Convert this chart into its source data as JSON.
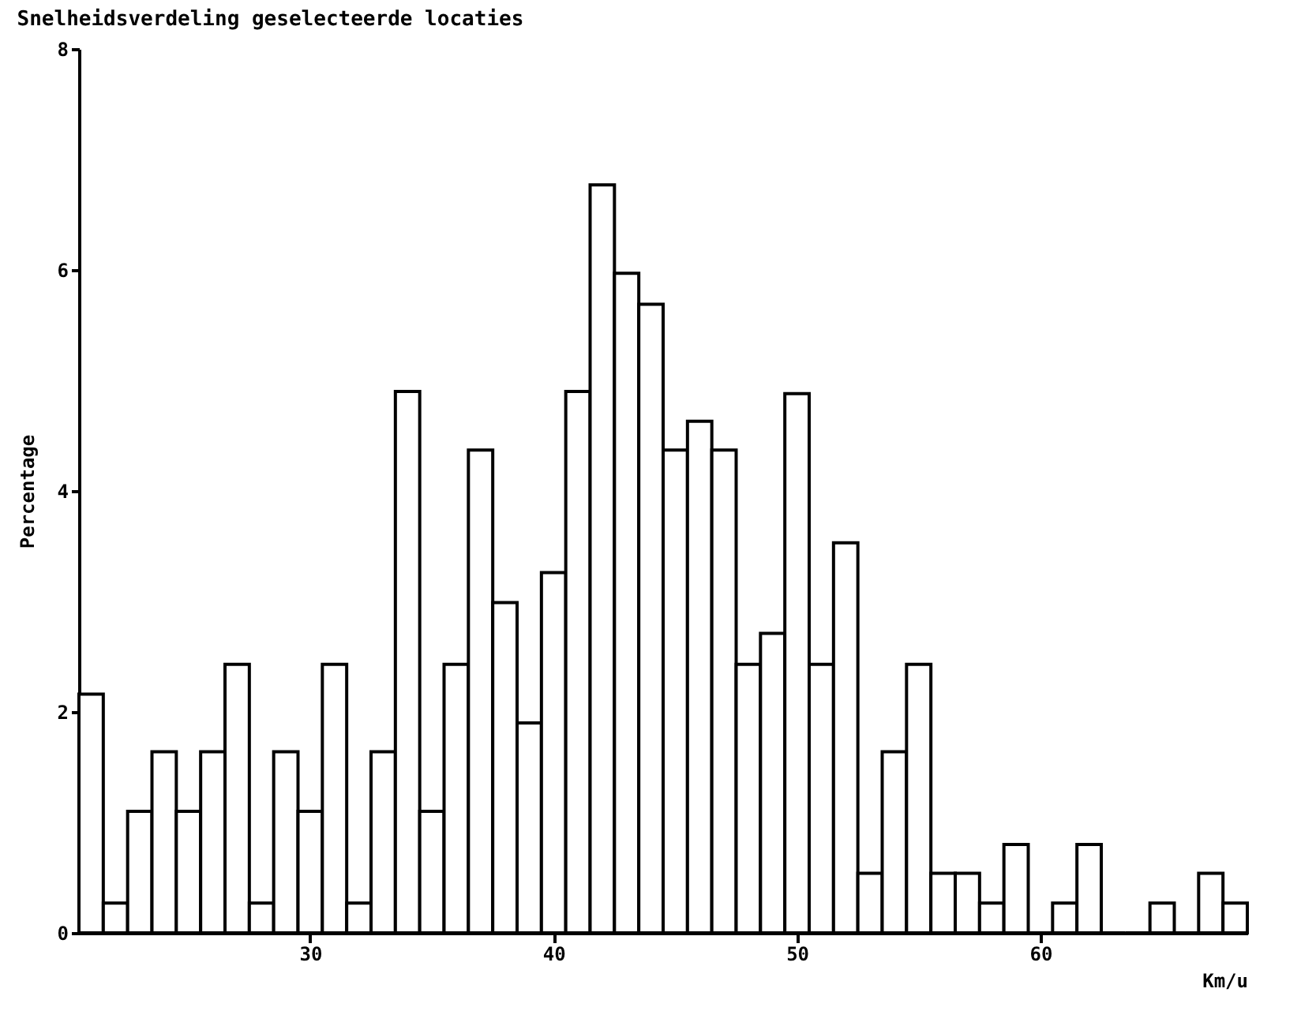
{
  "chart_data": {
    "type": "histogram",
    "title": "Snelheidsverdeling geselecteerde locaties",
    "xlabel": "Km/u",
    "ylabel": "Percentage",
    "bins": [
      20.5,
      21.5,
      22.5,
      23.5,
      24.5,
      25.5,
      26.5,
      27.5,
      28.5,
      29.5,
      30.5,
      31.5,
      32.5,
      33.5,
      34.5,
      35.5,
      36.5,
      37.5,
      38.5,
      39.5,
      40.5,
      41.5,
      42.5,
      43.5,
      44.5,
      45.5,
      46.5,
      47.5,
      48.5,
      49.5,
      50.5,
      51.5,
      52.5,
      53.5,
      54.5,
      55.5,
      56.5,
      57.5,
      58.5,
      59.5,
      60.5,
      61.5,
      62.5,
      63.5,
      64.5,
      65.5,
      66.5,
      67.5,
      68.5
    ],
    "values": [
      2.16,
      0.27,
      1.1,
      1.64,
      1.1,
      1.64,
      2.43,
      0.27,
      1.64,
      1.1,
      2.43,
      0.27,
      1.64,
      4.9,
      1.1,
      2.43,
      4.37,
      2.99,
      1.9,
      3.26,
      4.9,
      6.77,
      5.97,
      5.69,
      4.37,
      4.63,
      4.37,
      2.43,
      2.71,
      4.88,
      2.43,
      3.53,
      0.54,
      1.64,
      2.43,
      0.54,
      0.54,
      0.27,
      0.8,
      0,
      0.27,
      0.8,
      0,
      0,
      0.27,
      0,
      0.54,
      0.27
    ],
    "color": "#ffffff",
    "xlim": [
      20.5,
      68.5
    ],
    "xticks": [
      30,
      40,
      50,
      60
    ],
    "ylim": [
      0,
      8
    ],
    "yticks": [
      0,
      2,
      4,
      6,
      8
    ]
  }
}
